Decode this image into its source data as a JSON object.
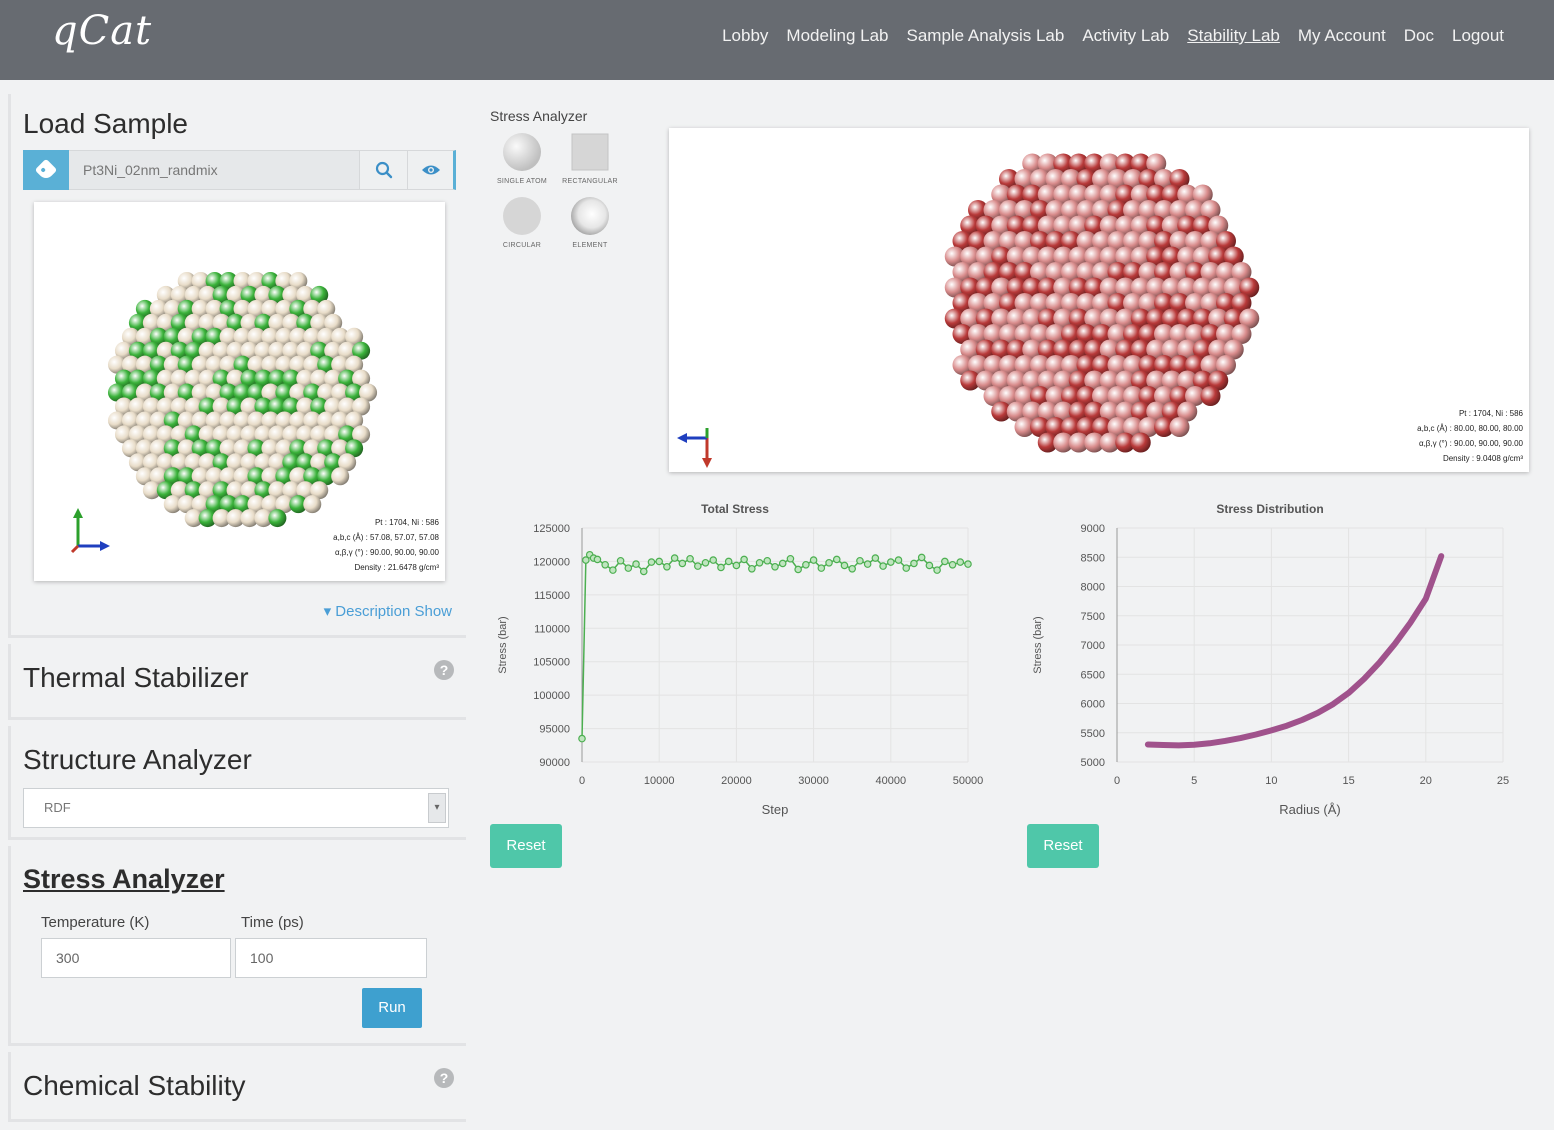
{
  "app": {
    "logo": "qCat"
  },
  "nav": {
    "items": [
      {
        "label": "Lobby",
        "active": false
      },
      {
        "label": "Modeling Lab",
        "active": false
      },
      {
        "label": "Sample Analysis Lab",
        "active": false
      },
      {
        "label": "Activity Lab",
        "active": false
      },
      {
        "label": "Stability Lab",
        "active": true
      },
      {
        "label": "My Account",
        "active": false
      },
      {
        "label": "Doc",
        "active": false
      },
      {
        "label": "Logout",
        "active": false
      }
    ]
  },
  "load_sample": {
    "title": "Load Sample",
    "sample_value": "Pt3Ni_02nm_randmix",
    "search_icon": "search-icon",
    "view_icon": "eye-icon",
    "tag_icon": "tag-icon",
    "description_toggle": "▾ Description Show",
    "viewer_info": {
      "counts": "Pt : 1704, Ni : 586",
      "abc": "a,b,c (Å) : 57.08, 57.07, 57.08",
      "angles": "α,β,γ (°) : 90.00, 90.00, 90.00",
      "density": "Density : 21.6478 g/cm³"
    }
  },
  "thermal": {
    "title": "Thermal Stabilizer",
    "help_icon": "question-icon"
  },
  "structure": {
    "title": "Structure Analyzer",
    "select_value": "RDF"
  },
  "stress": {
    "title": "Stress Analyzer",
    "temperature_label": "Temperature (K)",
    "temperature_value": "300",
    "time_label": "Time (ps)",
    "time_value": "100",
    "run_label": "Run"
  },
  "chemical": {
    "title": "Chemical Stability",
    "help_icon": "question-icon"
  },
  "stress_tools": {
    "title": "Stress Analyzer",
    "items": [
      {
        "label": "SINGLE ATOM",
        "icon": "sphere-single-icon"
      },
      {
        "label": "RECTANGULAR",
        "icon": "square-icon"
      },
      {
        "label": "CIRCULAR",
        "icon": "circle-icon"
      },
      {
        "label": "ELEMENT",
        "icon": "sphere-element-icon"
      }
    ]
  },
  "big_viewer_info": {
    "counts": "Pt : 1704, Ni : 586",
    "abc": "a,b,c (Å) : 80.00, 80.00, 80.00",
    "angles": "α,β,γ (°) : 90.00, 90.00, 90.00",
    "density": "Density : 9.0408 g/cm³"
  },
  "colors": {
    "navbar": "#676b71",
    "accent_blue": "#5ab0d6",
    "reset_green": "#4fc7a9",
    "series_green": "#4caf50",
    "series_purple": "#a0528c",
    "atom_pt": "#e8dcc8",
    "atom_ni": "#3bb33b",
    "atom_red_dark": "#b93a3a",
    "atom_red_light": "#d98c8c"
  },
  "reset_label": "Reset",
  "chart_data": [
    {
      "type": "scatter",
      "title": "Total Stress",
      "xlabel": "Step",
      "ylabel": "Stress (bar)",
      "xlim": [
        0,
        50000
      ],
      "ylim": [
        90000,
        125000
      ],
      "xticks": [
        "0",
        "10000",
        "20000",
        "30000",
        "40000",
        "50000"
      ],
      "yticks": [
        "90000",
        "95000",
        "100000",
        "105000",
        "110000",
        "115000",
        "120000",
        "125000"
      ],
      "grid": true,
      "series": [
        {
          "x": [
            0,
            500,
            1000,
            1500,
            2000,
            3000,
            4000,
            5000,
            6000,
            7000,
            8000,
            9000,
            10000,
            11000,
            12000,
            13000,
            14000,
            15000,
            16000,
            17000,
            18000,
            19000,
            20000,
            21000,
            22000,
            23000,
            24000,
            25000,
            26000,
            27000,
            28000,
            29000,
            30000,
            31000,
            32000,
            33000,
            34000,
            35000,
            36000,
            37000,
            38000,
            39000,
            40000,
            41000,
            42000,
            43000,
            44000,
            45000,
            46000,
            47000,
            48000,
            49000,
            50000
          ],
          "y": [
            93500,
            120200,
            121000,
            120500,
            120300,
            119500,
            118700,
            120100,
            119000,
            119600,
            118500,
            119900,
            120000,
            119200,
            120500,
            119700,
            120400,
            119300,
            119800,
            120200,
            119100,
            120000,
            119400,
            120300,
            118900,
            119800,
            120100,
            119200,
            119700,
            120400,
            118800,
            119500,
            120200,
            119000,
            119800,
            120300,
            119400,
            118900,
            120100,
            119600,
            120500,
            119300,
            119900,
            120200,
            119000,
            119700,
            120600,
            119400,
            118700,
            120000,
            119500,
            119900,
            119600
          ]
        }
      ]
    },
    {
      "type": "line",
      "title": "Stress Distribution",
      "xlabel": "Radius (Å)",
      "ylabel": "Stress (bar)",
      "xlim": [
        0,
        25
      ],
      "ylim": [
        5000,
        9000
      ],
      "xticks": [
        "0",
        "5",
        "10",
        "15",
        "20",
        "25"
      ],
      "yticks": [
        "5000",
        "5500",
        "6000",
        "6500",
        "7000",
        "7500",
        "8000",
        "8500",
        "9000"
      ],
      "grid": true,
      "series": [
        {
          "x": [
            2,
            3,
            4,
            5,
            6,
            7,
            8,
            9,
            10,
            11,
            12,
            13,
            14,
            15,
            16,
            17,
            18,
            19,
            20,
            21
          ],
          "y": [
            5300,
            5290,
            5285,
            5295,
            5320,
            5360,
            5410,
            5470,
            5540,
            5620,
            5720,
            5840,
            5990,
            6180,
            6420,
            6700,
            7020,
            7380,
            7790,
            8520
          ]
        }
      ]
    }
  ]
}
